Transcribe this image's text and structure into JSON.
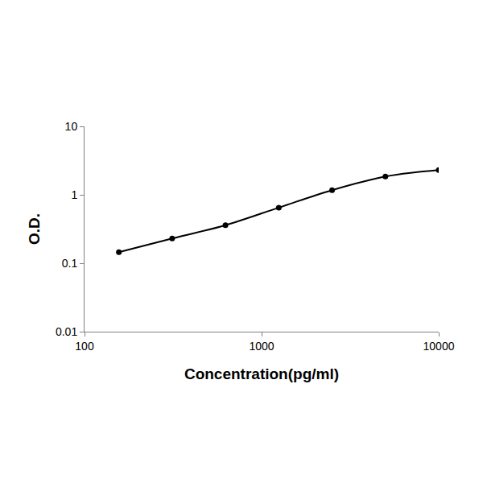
{
  "chart_data": {
    "type": "line",
    "x_label": "Concentration(pg/ml)",
    "y_label": "O.D.",
    "x": [
      156.25,
      312.5,
      625,
      1250,
      2500,
      5000,
      10000
    ],
    "values": [
      0.145,
      0.23,
      0.36,
      0.65,
      1.17,
      1.85,
      2.3
    ],
    "color": "#000000",
    "marker": "circle",
    "line_style": "smooth",
    "log": true,
    "grid": false,
    "xlim": [
      100,
      10000
    ],
    "xticks": [
      100,
      1000,
      10000
    ],
    "ylim": [
      0.01,
      10
    ],
    "yticks": [
      0.01,
      0.1,
      1,
      10
    ]
  }
}
